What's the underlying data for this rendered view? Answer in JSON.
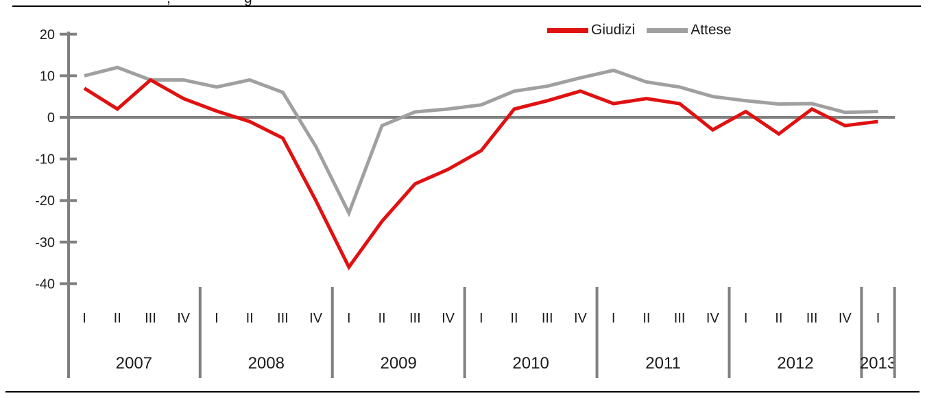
{
  "page": {
    "background": "#ffffff",
    "rule_color": "#000000",
    "cropped_title_fragments": [
      {
        "char": ",",
        "x": 243
      },
      {
        "char": "g",
        "x": 356
      }
    ]
  },
  "chart_data": {
    "type": "line",
    "x_unit": "quarter",
    "x_years": [
      {
        "year": "2007",
        "quarters": [
          "I",
          "II",
          "III",
          "IV"
        ]
      },
      {
        "year": "2008",
        "quarters": [
          "I",
          "II",
          "III",
          "IV"
        ]
      },
      {
        "year": "2009",
        "quarters": [
          "I",
          "II",
          "III",
          "IV"
        ]
      },
      {
        "year": "2010",
        "quarters": [
          "I",
          "II",
          "III",
          "IV"
        ]
      },
      {
        "year": "2011",
        "quarters": [
          "I",
          "II",
          "III",
          "IV"
        ]
      },
      {
        "year": "2012",
        "quarters": [
          "I",
          "II",
          "III",
          "IV"
        ]
      },
      {
        "year": "2013",
        "quarters": [
          "I"
        ]
      }
    ],
    "categories": [
      "2007-I",
      "2007-II",
      "2007-III",
      "2007-IV",
      "2008-I",
      "2008-II",
      "2008-III",
      "2008-IV",
      "2009-I",
      "2009-II",
      "2009-III",
      "2009-IV",
      "2010-I",
      "2010-II",
      "2010-III",
      "2010-IV",
      "2011-I",
      "2011-II",
      "2011-III",
      "2011-IV",
      "2012-I",
      "2012-II",
      "2012-III",
      "2012-IV",
      "2013-I"
    ],
    "series": [
      {
        "name": "Giudizi",
        "color": "#e01111",
        "values": [
          7,
          2,
          9,
          4.5,
          1.5,
          -1,
          -5,
          -20,
          -36,
          -25,
          -16,
          -12.5,
          -8,
          2,
          4,
          6.3,
          3.3,
          4.5,
          3.3,
          -3,
          1.4,
          -4,
          2,
          -2,
          -1
        ]
      },
      {
        "name": "Attese",
        "color": "#a0a0a0",
        "values": [
          10,
          12,
          9,
          9,
          7.3,
          9,
          6,
          -7,
          -23,
          -2,
          1.3,
          2,
          3,
          6.3,
          7.5,
          9.5,
          11.3,
          8.5,
          7.3,
          5,
          4,
          3.2,
          3.3,
          1.2,
          1.4
        ]
      }
    ],
    "y_axis": {
      "ticks": [
        20,
        10,
        0,
        -10,
        -20,
        -30,
        -40
      ],
      "min": -40,
      "max": 20
    },
    "axis_color": "#808080",
    "text_color": "#1a1a1a",
    "zero_line": true,
    "grid": false,
    "legend_position": "top-center"
  }
}
